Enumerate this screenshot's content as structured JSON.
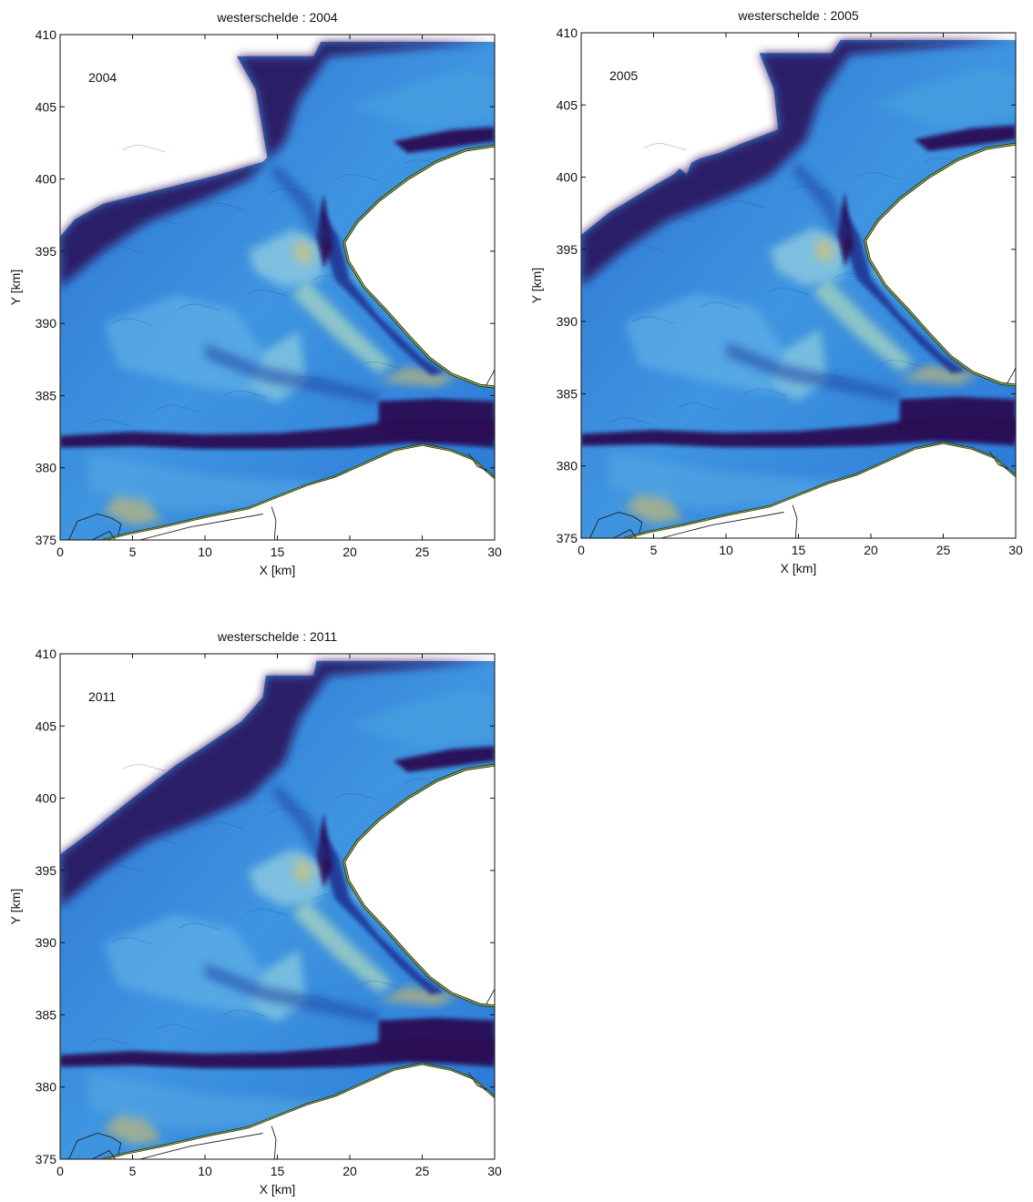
{
  "figure": {
    "panels": [
      {
        "title": "westerschelde : 2004",
        "year_label": "2004"
      },
      {
        "title": "westerschelde : 2005",
        "year_label": "2005"
      },
      {
        "title": "westerschelde : 2011",
        "year_label": "2011"
      }
    ],
    "x_axis": {
      "label": "X [km]",
      "ticks": [
        "0",
        "5",
        "10",
        "15",
        "20",
        "25",
        "30"
      ],
      "range": [
        0,
        30
      ]
    },
    "y_axis": {
      "label": "Y [km]",
      "ticks": [
        "375",
        "380",
        "385",
        "390",
        "395",
        "400",
        "405",
        "410"
      ],
      "range": [
        375,
        410
      ]
    },
    "colors": {
      "deep_channel": "#2a0f55",
      "shallow": "#1f6fcf",
      "shoal": "#5fb3e6",
      "high_shoal": "#e9c45a",
      "land_edge": "#0f3a1a",
      "land": "#ffffff"
    }
  }
}
